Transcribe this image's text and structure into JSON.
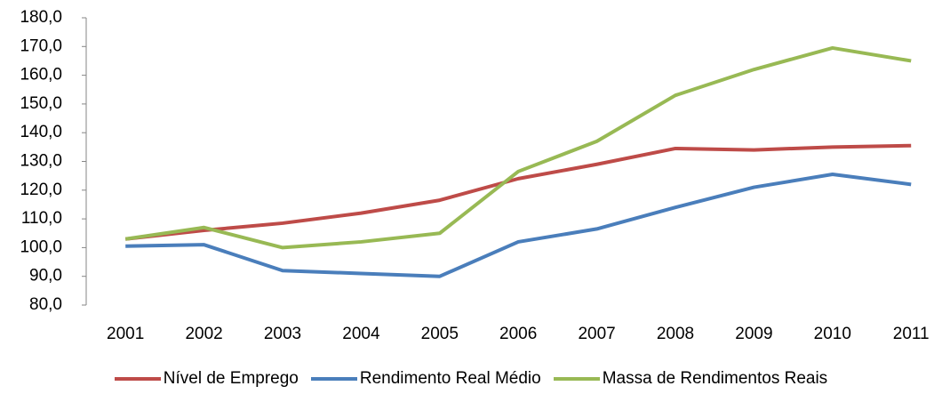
{
  "chart_data": {
    "type": "line",
    "categories": [
      "2001",
      "2002",
      "2003",
      "2004",
      "2005",
      "2006",
      "2007",
      "2008",
      "2009",
      "2010",
      "2011"
    ],
    "series": [
      {
        "name": "Nível de Emprego",
        "color": "#be4b48",
        "values": [
          103,
          106,
          108.5,
          112,
          116.5,
          124,
          129,
          134.5,
          134,
          135,
          135.5
        ]
      },
      {
        "name": "Rendimento Real Médio",
        "color": "#4a7ebb",
        "values": [
          100.5,
          101,
          92,
          91,
          90,
          102,
          106.5,
          114,
          121,
          125.5,
          122
        ]
      },
      {
        "name": "Massa de Rendimentos Reais",
        "color": "#98b954",
        "values": [
          103,
          107,
          100,
          102,
          105,
          126.5,
          137,
          153,
          162,
          169.5,
          165
        ]
      }
    ],
    "ylim": [
      80,
      180
    ],
    "yticks": [
      {
        "value": 80,
        "label": "80,0"
      },
      {
        "value": 90,
        "label": "90,0"
      },
      {
        "value": 100,
        "label": "100,0"
      },
      {
        "value": 110,
        "label": "110,0"
      },
      {
        "value": 120,
        "label": "120,0"
      },
      {
        "value": 130,
        "label": "130,0"
      },
      {
        "value": 140,
        "label": "140,0"
      },
      {
        "value": 150,
        "label": "150,0"
      },
      {
        "value": 160,
        "label": "160,0"
      },
      {
        "value": 170,
        "label": "170,0"
      },
      {
        "value": 180,
        "label": "180,0"
      }
    ],
    "legend": "bottom"
  }
}
